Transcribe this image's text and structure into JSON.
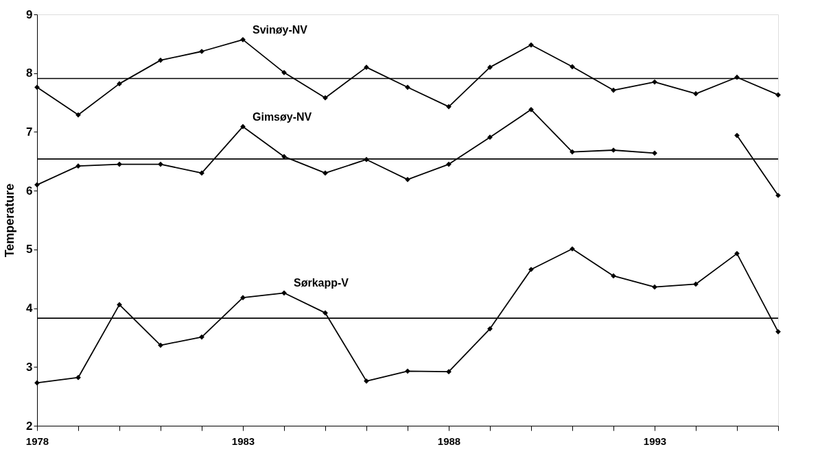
{
  "chart_data": {
    "type": "line",
    "ylabel": "Temperature",
    "x": [
      1978,
      1979,
      1980,
      1981,
      1982,
      1983,
      1984,
      1985,
      1986,
      1987,
      1988,
      1989,
      1990,
      1991,
      1992,
      1993,
      1994,
      1995,
      1996
    ],
    "series": [
      {
        "name": "Svinøy-NV",
        "color": "#000000",
        "values": [
          7.76,
          7.29,
          7.82,
          8.22,
          8.37,
          8.57,
          8.01,
          7.58,
          8.1,
          7.76,
          7.43,
          8.1,
          8.48,
          8.11,
          7.71,
          7.85,
          7.65,
          7.93,
          7.63
        ]
      },
      {
        "name": "Gimsøy-NV",
        "color": "#000000",
        "values": [
          6.1,
          6.42,
          6.45,
          6.45,
          6.3,
          7.09,
          6.58,
          6.3,
          6.53,
          6.19,
          6.45,
          6.91,
          7.38,
          6.66,
          6.69,
          6.64,
          null,
          6.94,
          5.92
        ]
      },
      {
        "name": "Sørkapp-V",
        "color": "#000000",
        "values": [
          2.73,
          2.82,
          4.06,
          3.37,
          3.51,
          4.18,
          4.26,
          3.92,
          2.76,
          2.93,
          2.92,
          3.65,
          4.66,
          5.01,
          4.55,
          4.36,
          4.41,
          4.93,
          3.6
        ]
      }
    ],
    "ref_lines": [
      {
        "axis": "y",
        "value": 7.91,
        "color": "#000000"
      },
      {
        "axis": "y",
        "value": 6.54,
        "color": "#000000"
      },
      {
        "axis": "y",
        "value": 3.83,
        "color": "#000000"
      }
    ],
    "xlim": [
      1978,
      1996
    ],
    "xticks": [
      1978,
      {
        "value": 1979,
        "label": null
      },
      {
        "value": 1980,
        "label": null
      },
      {
        "value": 1981,
        "label": null
      },
      {
        "value": 1982,
        "label": null
      },
      1983,
      {
        "value": 1984,
        "label": null
      },
      {
        "value": 1985,
        "label": null
      },
      {
        "value": 1986,
        "label": null
      },
      {
        "value": 1987,
        "label": null
      },
      1988,
      {
        "value": 1989,
        "label": null
      },
      {
        "value": 1990,
        "label": null
      },
      {
        "value": 1991,
        "label": null
      },
      {
        "value": 1992,
        "label": null
      },
      1993,
      {
        "value": 1994,
        "label": null
      },
      {
        "value": 1995,
        "label": null
      },
      {
        "value": 1996,
        "label": null
      }
    ],
    "ylim": [
      2,
      9
    ],
    "yticks": [
      2,
      3,
      4,
      5,
      6,
      7,
      8,
      9
    ],
    "grid": false,
    "legend": false,
    "marker": "diamond",
    "line_style": "solid"
  }
}
